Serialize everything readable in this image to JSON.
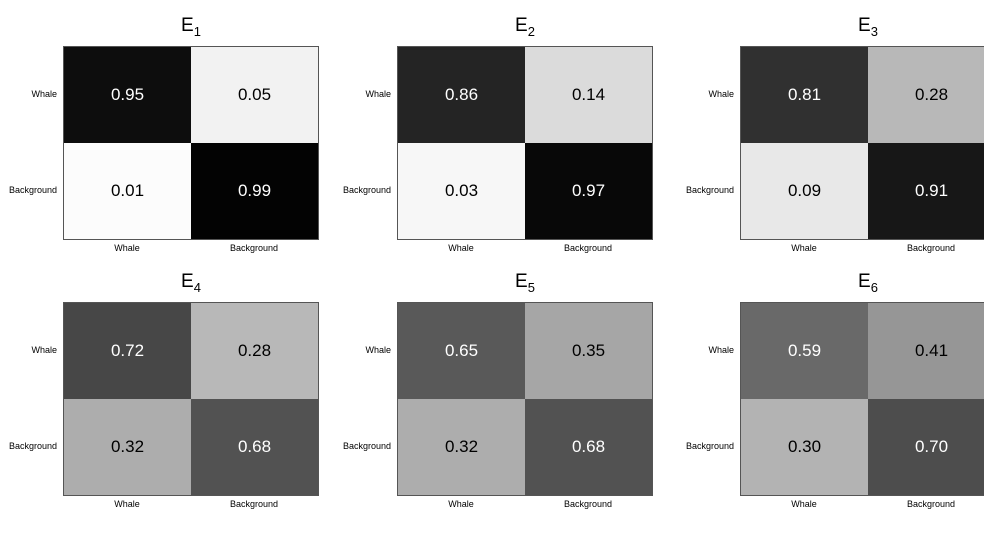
{
  "chart_data": [
    {
      "type": "heatmap",
      "title_main": "E",
      "title_sub": "1",
      "row_labels": [
        "Whale",
        "Background"
      ],
      "col_labels": [
        "Whale",
        "Background"
      ],
      "values": [
        [
          0.95,
          0.05
        ],
        [
          0.01,
          0.99
        ]
      ],
      "colormap": "gray-reversed",
      "vmin": 0,
      "vmax": 1
    },
    {
      "type": "heatmap",
      "title_main": "E",
      "title_sub": "2",
      "row_labels": [
        "Whale",
        "Background"
      ],
      "col_labels": [
        "Whale",
        "Background"
      ],
      "values": [
        [
          0.86,
          0.14
        ],
        [
          0.03,
          0.97
        ]
      ],
      "colormap": "gray-reversed",
      "vmin": 0,
      "vmax": 1
    },
    {
      "type": "heatmap",
      "title_main": "E",
      "title_sub": "3",
      "row_labels": [
        "Whale",
        "Background"
      ],
      "col_labels": [
        "Whale",
        "Background"
      ],
      "values": [
        [
          0.81,
          0.28
        ],
        [
          0.09,
          0.91
        ]
      ],
      "colormap": "gray-reversed",
      "vmin": 0,
      "vmax": 1
    },
    {
      "type": "heatmap",
      "title_main": "E",
      "title_sub": "4",
      "row_labels": [
        "Whale",
        "Background"
      ],
      "col_labels": [
        "Whale",
        "Background"
      ],
      "values": [
        [
          0.72,
          0.28
        ],
        [
          0.32,
          0.68
        ]
      ],
      "colormap": "gray-reversed",
      "vmin": 0,
      "vmax": 1
    },
    {
      "type": "heatmap",
      "title_main": "E",
      "title_sub": "5",
      "row_labels": [
        "Whale",
        "Background"
      ],
      "col_labels": [
        "Whale",
        "Background"
      ],
      "values": [
        [
          0.65,
          0.35
        ],
        [
          0.32,
          0.68
        ]
      ],
      "colormap": "gray-reversed",
      "vmin": 0,
      "vmax": 1
    },
    {
      "type": "heatmap",
      "title_main": "E",
      "title_sub": "6",
      "row_labels": [
        "Whale",
        "Background"
      ],
      "col_labels": [
        "Whale",
        "Background"
      ],
      "values": [
        [
          0.59,
          0.41
        ],
        [
          0.3,
          0.7
        ]
      ],
      "colormap": "gray-reversed",
      "vmin": 0,
      "vmax": 1
    }
  ]
}
